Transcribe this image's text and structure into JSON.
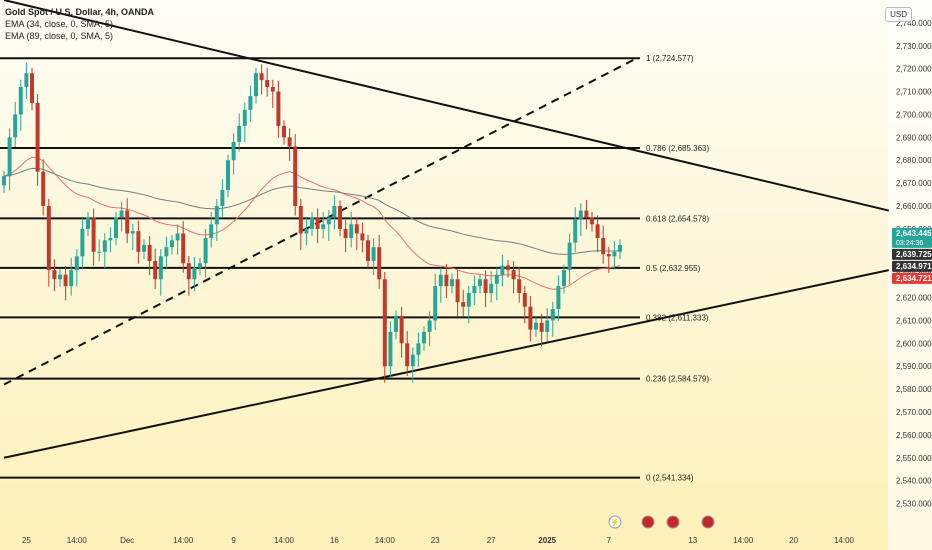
{
  "header": {
    "title": "Gold Spot / U.S. Dollar, 4h, OANDA",
    "ema1": "EMA (34, close, 0, SMA, 5)",
    "ema2": "EMA (89, close, 0, SMA, 5)",
    "currency": "USD"
  },
  "colors": {
    "bg_top": "#fdfdf5",
    "bg_bottom": "#fdf0b8",
    "up": "#26a69a",
    "down": "#c0392b",
    "ema34": "#e57373",
    "ema89": "#7d7d7d",
    "line": "#111111"
  },
  "chart_data": {
    "type": "candlestick",
    "ylim": [
      2525,
      2750
    ],
    "y_ticks": [
      2530,
      2540,
      2550,
      2560,
      2570,
      2580,
      2590,
      2600,
      2610,
      2620,
      2630,
      2640,
      2650,
      2660,
      2670,
      2680,
      2690,
      2700,
      2710,
      2720,
      2730,
      2740
    ],
    "x_labels": [
      {
        "label": "25",
        "i": 4
      },
      {
        "label": "14:00",
        "i": 13
      },
      {
        "label": "Dec",
        "i": 22
      },
      {
        "label": "14:00",
        "i": 32
      },
      {
        "label": "9",
        "i": 41
      },
      {
        "label": "14:00",
        "i": 50
      },
      {
        "label": "16",
        "i": 59
      },
      {
        "label": "14:00",
        "i": 68
      },
      {
        "label": "23",
        "i": 77
      },
      {
        "label": "27",
        "i": 87
      },
      {
        "label": "2025",
        "i": 97
      },
      {
        "label": "7",
        "i": 108
      },
      {
        "label": "13",
        "i": 123
      },
      {
        "label": "14:00",
        "i": 132
      },
      {
        "label": "20",
        "i": 141
      },
      {
        "label": "14:00",
        "i": 150
      }
    ],
    "fib_levels": [
      {
        "label": "1 (2,724.577)",
        "value": 2724.577
      },
      {
        "label": "0.786 (2,685.363)",
        "value": 2685.363
      },
      {
        "label": "0.618 (2,654.578)",
        "value": 2654.578
      },
      {
        "label": "0.5 (2,632.955)",
        "value": 2632.955
      },
      {
        "label": "0.382 (2,611.333)",
        "value": 2611.333
      },
      {
        "label": "0.236 (2,584.579)",
        "value": 2584.579
      },
      {
        "label": "0 (2,541.334)",
        "value": 2541.334
      }
    ],
    "price_tags": [
      {
        "label": "2,643.445",
        "value": 2643.445,
        "color": "#26a69a",
        "sub": "03:24:36"
      },
      {
        "label": "2,639.725",
        "value": 2639.725,
        "color": "#333333"
      },
      {
        "label": "2,634.971",
        "value": 2634.971,
        "color": "#333333"
      },
      {
        "label": "2,634.721",
        "value": 2634.721,
        "color": "#e53935"
      }
    ],
    "close": [
      2673,
      2690,
      2700,
      2712,
      2718,
      2705,
      2675,
      2660,
      2632,
      2628,
      2630,
      2625,
      2632,
      2638,
      2650,
      2655,
      2640,
      2640,
      2645,
      2646,
      2655,
      2658,
      2648,
      2649,
      2640,
      2643,
      2636,
      2628,
      2638,
      2642,
      2645,
      2648,
      2635,
      2628,
      2633,
      2635,
      2646,
      2652,
      2660,
      2667,
      2680,
      2688,
      2695,
      2702,
      2708,
      2718,
      2715,
      2712,
      2710,
      2695,
      2690,
      2686,
      2660,
      2648,
      2650,
      2655,
      2650,
      2652,
      2655,
      2660,
      2650,
      2646,
      2652,
      2648,
      2645,
      2636,
      2642,
      2628,
      2590,
      2605,
      2612,
      2600,
      2590,
      2595,
      2600,
      2605,
      2610,
      2625,
      2630,
      2625,
      2628,
      2618,
      2616,
      2622,
      2625,
      2628,
      2622,
      2626,
      2630,
      2634,
      2632,
      2628,
      2622,
      2616,
      2606,
      2609,
      2605,
      2610,
      2615,
      2625,
      2632,
      2644,
      2654,
      2658,
      2655,
      2652,
      2646,
      2639,
      2638,
      2640,
      2643
    ],
    "high_low_extra": [
      6,
      8
    ],
    "triangle": {
      "upper": {
        "from": [
          0,
          2750
        ],
        "to": [
          158,
          2658
        ]
      },
      "lower": {
        "from": [
          0,
          2550
        ],
        "to": [
          158,
          2632
        ]
      },
      "dashed": {
        "from": [
          0,
          2582
        ],
        "to": [
          113,
          2724.577
        ]
      }
    }
  }
}
